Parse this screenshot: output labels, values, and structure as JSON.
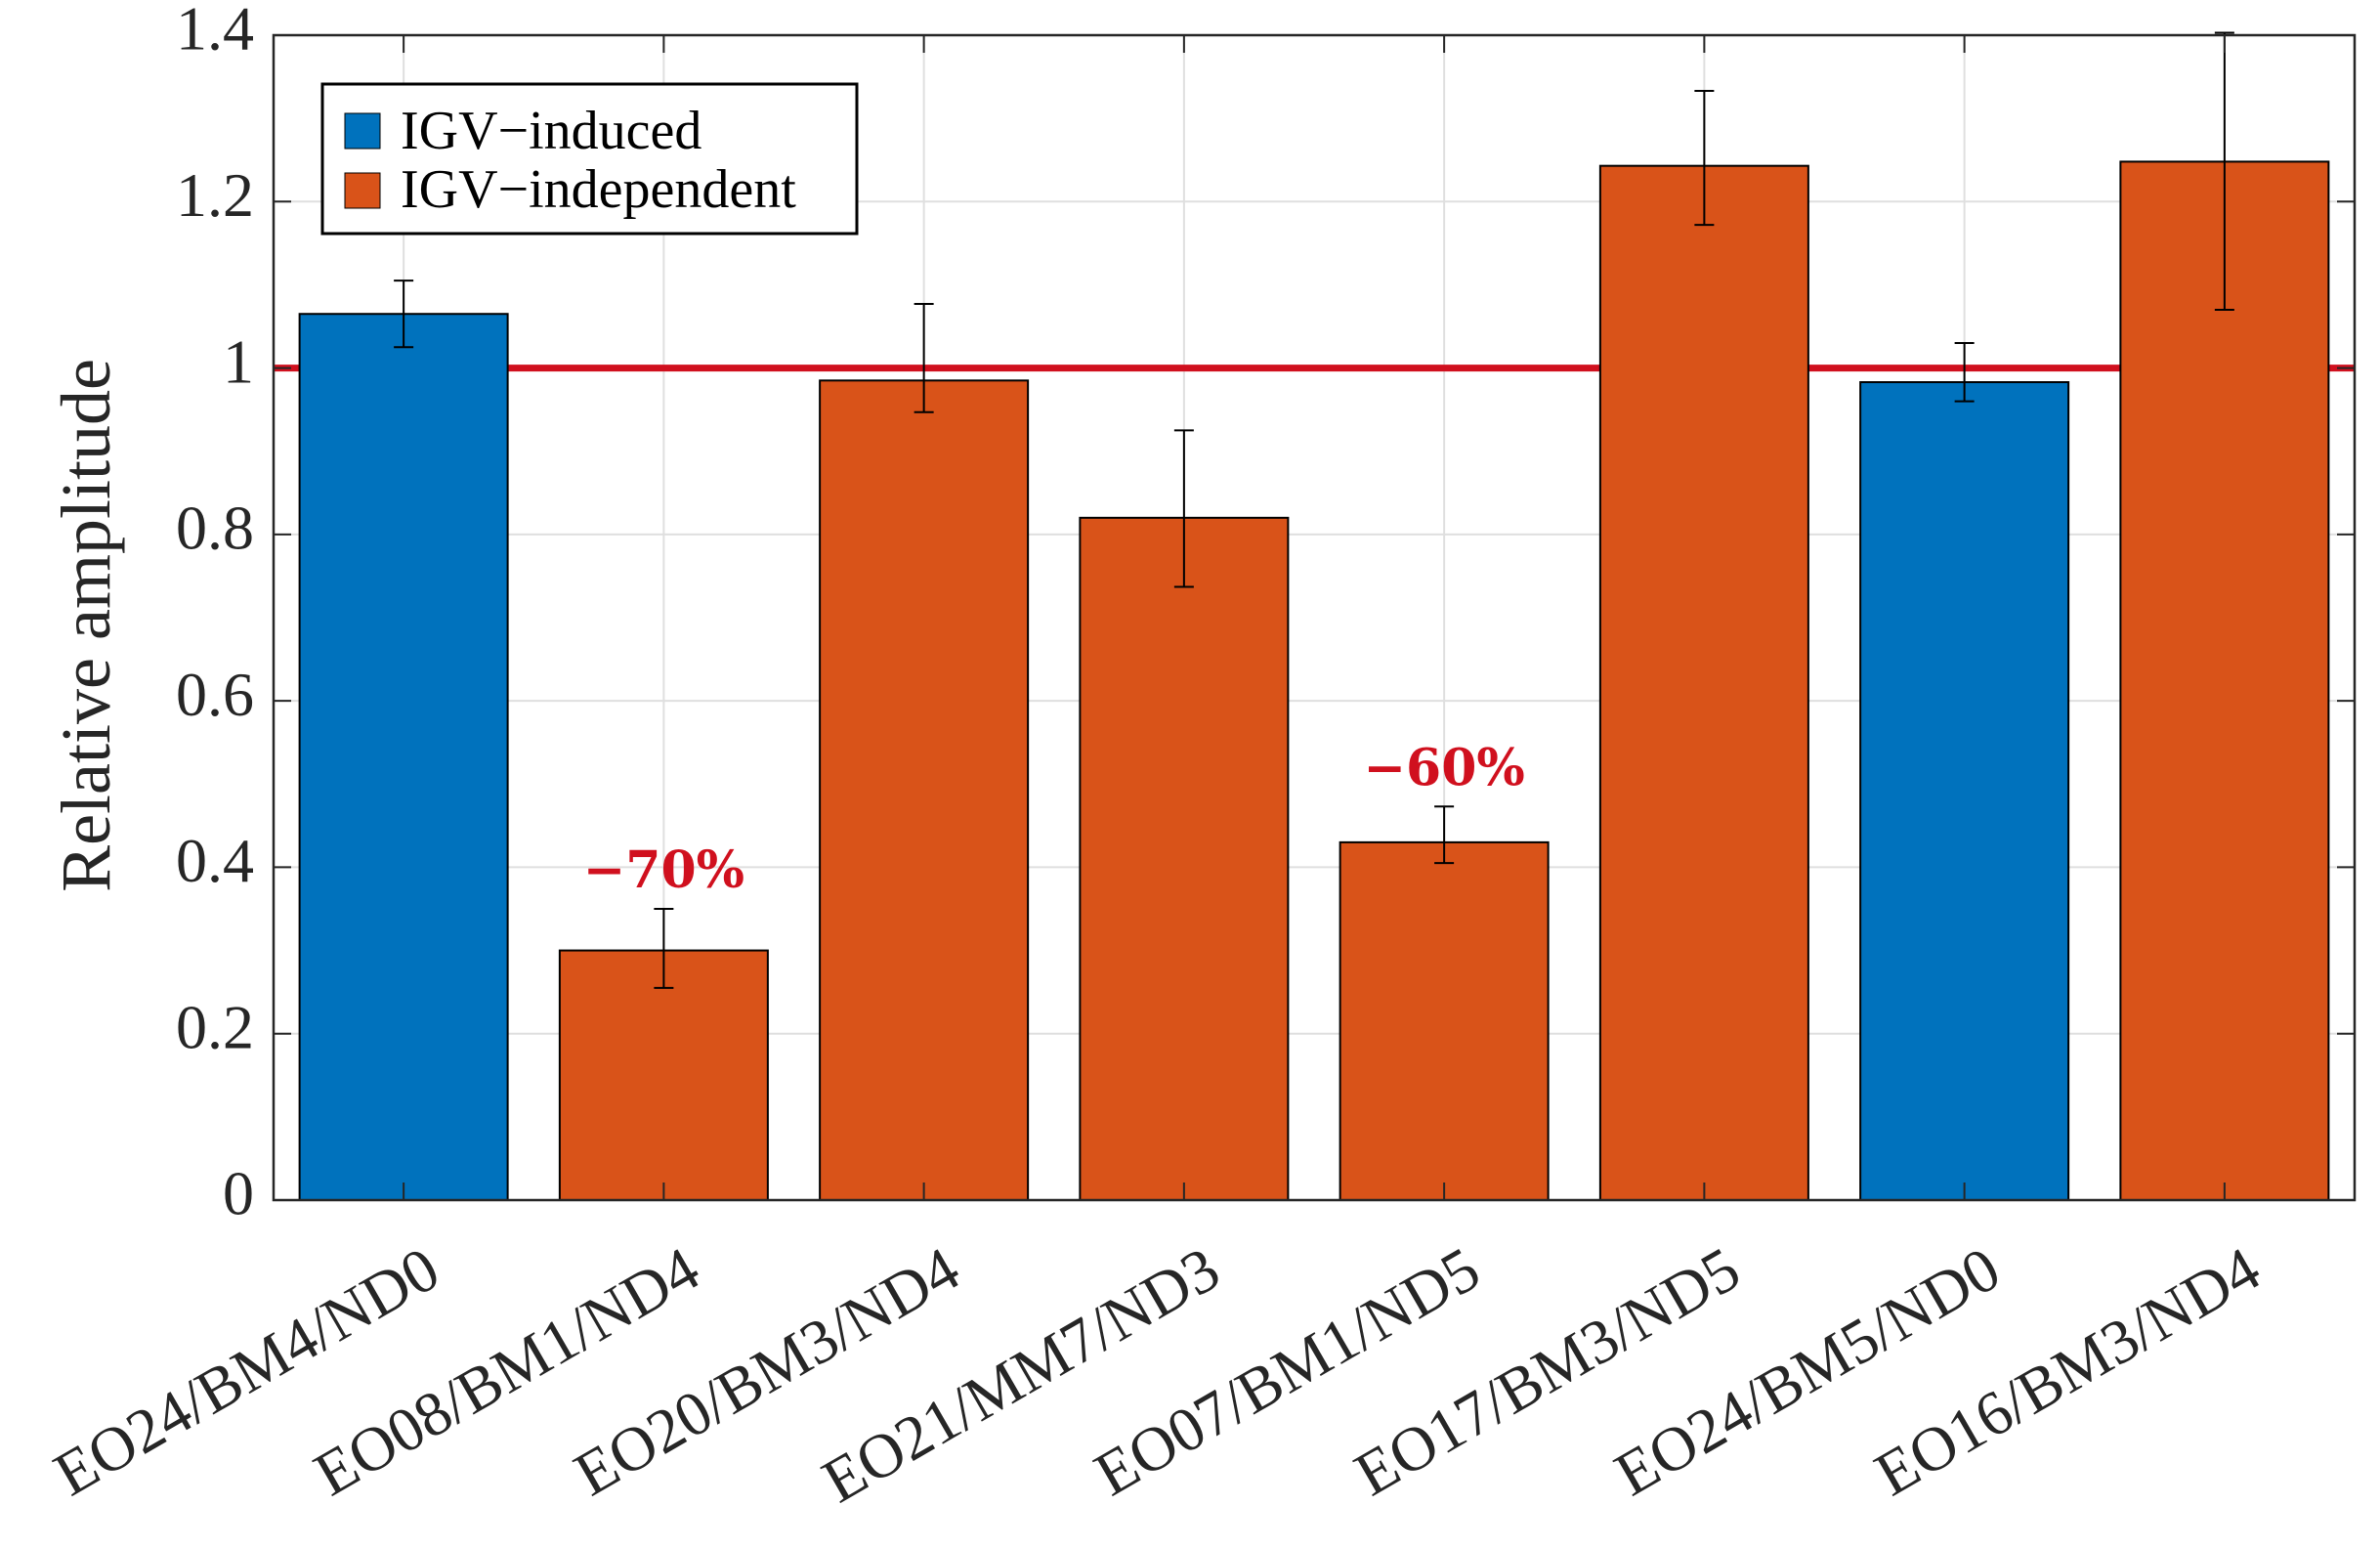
{
  "chart_data": {
    "type": "bar",
    "title": "",
    "xlabel": "",
    "ylabel": "Relative amplitude",
    "ylim": [
      0,
      1.4
    ],
    "yticks": [
      "0",
      "0.2",
      "0.4",
      "0.6",
      "0.8",
      "1",
      "1.2",
      "1.4"
    ],
    "grid": true,
    "categories": [
      "EO24/BM4/ND0",
      "EO08/BM1/ND4",
      "EO20/BM3/ND4",
      "EO21/MM7/ND3",
      "EO07/BM1/ND5",
      "EO17/BM3/ND5",
      "EO24/BM5/ND0",
      "EO16/BM3/ND4"
    ],
    "values": [
      1.065,
      0.3,
      0.985,
      0.82,
      0.43,
      1.243,
      0.983,
      1.248
    ],
    "error_low": [
      1.025,
      0.255,
      0.947,
      0.737,
      0.405,
      1.172,
      0.96,
      1.07
    ],
    "error_high": [
      1.105,
      0.35,
      1.077,
      0.925,
      0.473,
      1.333,
      1.03,
      1.403
    ],
    "groups": [
      "IGV-induced",
      "IGV-independent",
      "IGV-independent",
      "IGV-independent",
      "IGV-independent",
      "IGV-independent",
      "IGV-induced",
      "IGV-independent"
    ],
    "legend": {
      "placement": "top-left",
      "entries": [
        {
          "label": "IGV−induced",
          "color": "#0072BD"
        },
        {
          "label": "IGV−independent",
          "color": "#D95319"
        }
      ]
    },
    "reference_line": {
      "y": 1.0,
      "color": "#D0101E"
    },
    "annotations": [
      {
        "text": "−70%",
        "category_index": 1,
        "color": "#D0101E"
      },
      {
        "text": "−60%",
        "category_index": 4,
        "color": "#D0101E"
      }
    ]
  },
  "colors": {
    "IGV-induced": "#0072BD",
    "IGV-independent": "#D95319"
  }
}
